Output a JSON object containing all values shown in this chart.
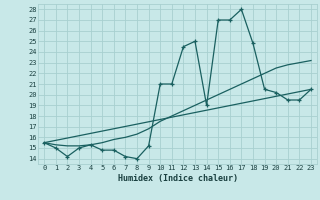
{
  "background_color": "#c8e8e8",
  "grid_color": "#a8d0d0",
  "line_color": "#1a6060",
  "marker_color": "#1a6060",
  "xlabel": "Humidex (Indice chaleur)",
  "xlim": [
    -0.5,
    23.5
  ],
  "ylim": [
    13.5,
    28.5
  ],
  "xticks": [
    0,
    1,
    2,
    3,
    4,
    5,
    6,
    7,
    8,
    9,
    10,
    11,
    12,
    13,
    14,
    15,
    16,
    17,
    18,
    19,
    20,
    21,
    22,
    23
  ],
  "yticks": [
    14,
    15,
    16,
    17,
    18,
    19,
    20,
    21,
    22,
    23,
    24,
    25,
    26,
    27,
    28
  ],
  "series1_x": [
    0,
    1,
    2,
    3,
    4,
    5,
    6,
    7,
    8,
    9,
    10,
    11,
    12,
    13,
    14,
    15,
    16,
    17,
    18,
    19,
    20,
    21,
    22,
    23
  ],
  "series1_y": [
    15.5,
    15.0,
    14.2,
    15.0,
    15.3,
    14.8,
    14.8,
    14.2,
    14.0,
    15.2,
    21.0,
    21.0,
    24.5,
    25.0,
    19.0,
    27.0,
    27.0,
    28.0,
    24.8,
    20.5,
    20.2,
    19.5,
    19.5,
    20.5
  ],
  "series2_x": [
    0,
    1,
    2,
    3,
    4,
    5,
    6,
    7,
    8,
    9,
    10,
    11,
    12,
    13,
    14,
    15,
    16,
    17,
    18,
    19,
    20,
    21,
    22,
    23
  ],
  "series2_y": [
    15.5,
    15.3,
    15.2,
    15.2,
    15.3,
    15.5,
    15.8,
    16.0,
    16.3,
    16.8,
    17.5,
    18.0,
    18.5,
    19.0,
    19.5,
    20.0,
    20.5,
    21.0,
    21.5,
    22.0,
    22.5,
    22.8,
    23.0,
    23.2
  ],
  "series3_x": [
    0,
    23
  ],
  "series3_y": [
    15.5,
    20.5
  ]
}
